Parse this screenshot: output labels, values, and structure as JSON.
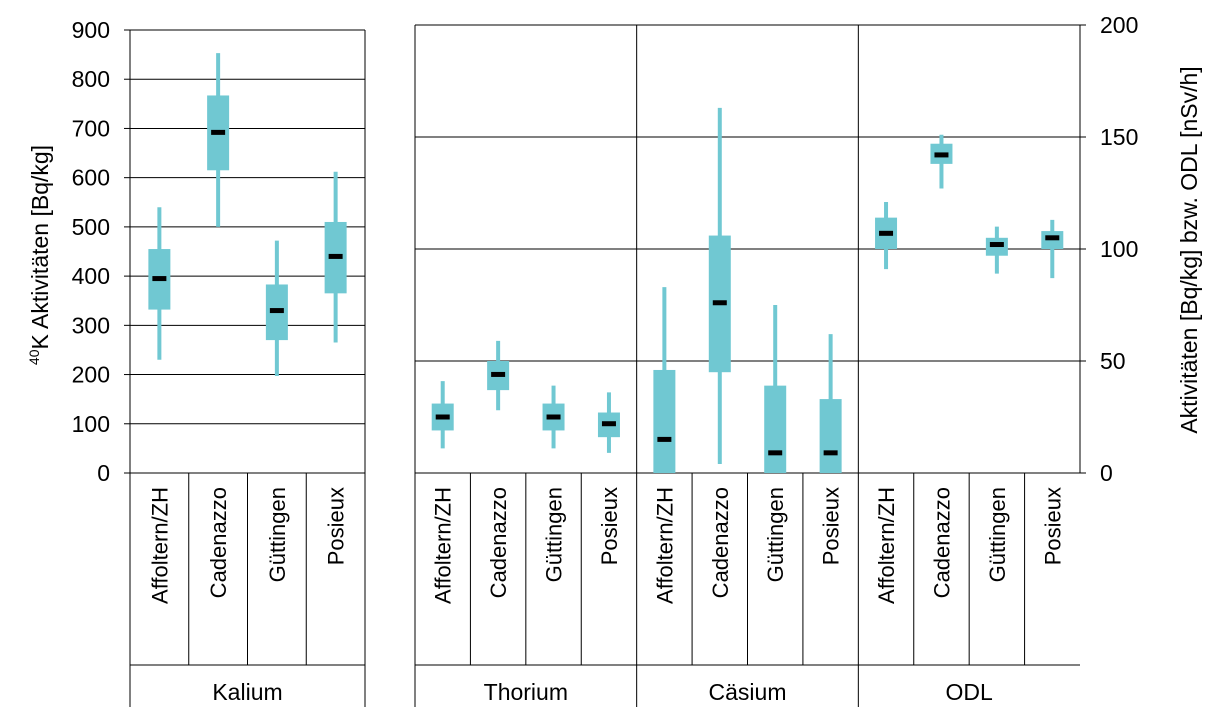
{
  "chart_data": [
    {
      "type": "box",
      "panel": "left",
      "ylabel_sup": "40",
      "ylabel": "K Aktivitäten [Bq/kg]",
      "ylim": [
        0,
        900
      ],
      "yticks": [
        0,
        100,
        200,
        300,
        400,
        500,
        600,
        700,
        800,
        900
      ],
      "group": "Kalium",
      "categories": [
        "Affoltern/ZH",
        "Cadenazzo",
        "Güttingen",
        "Posieux"
      ],
      "boxes": [
        {
          "min": 230,
          "q1": 332,
          "median": 395,
          "q3": 455,
          "max": 540
        },
        {
          "min": 500,
          "q1": 615,
          "median": 692,
          "q3": 767,
          "max": 853
        },
        {
          "min": 197,
          "q1": 270,
          "median": 330,
          "q3": 383,
          "max": 472
        },
        {
          "min": 265,
          "q1": 365,
          "median": 440,
          "q3": 510,
          "max": 612
        }
      ]
    },
    {
      "type": "box",
      "panel": "right",
      "ylabel": "Aktivitäten [Bq/kg] bzw. ODL [nSv/h]",
      "ylim": [
        0,
        200
      ],
      "yticks": [
        0,
        50,
        100,
        150,
        200
      ],
      "groups": [
        {
          "name": "Thorium",
          "categories": [
            "Affoltern/ZH",
            "Cadenazzo",
            "Güttingen",
            "Posieux"
          ],
          "boxes": [
            {
              "min": 11,
              "q1": 19,
              "median": 25,
              "q3": 31,
              "max": 41
            },
            {
              "min": 28,
              "q1": 37,
              "median": 44,
              "q3": 50,
              "max": 59
            },
            {
              "min": 11,
              "q1": 19,
              "median": 25,
              "q3": 31,
              "max": 39
            },
            {
              "min": 9,
              "q1": 16,
              "median": 22,
              "q3": 27,
              "max": 36
            }
          ]
        },
        {
          "name": "Cäsium",
          "categories": [
            "Affoltern/ZH",
            "Cadenazzo",
            "Güttingen",
            "Posieux"
          ],
          "boxes": [
            {
              "min": 0,
              "q1": 0,
              "median": 15,
              "q3": 46,
              "max": 83
            },
            {
              "min": 4,
              "q1": 45,
              "median": 76,
              "q3": 106,
              "max": 163
            },
            {
              "min": 0,
              "q1": 0,
              "median": 9,
              "q3": 39,
              "max": 75
            },
            {
              "min": 0,
              "q1": 0,
              "median": 9,
              "q3": 33,
              "max": 62
            }
          ]
        },
        {
          "name": "ODL",
          "categories": [
            "Affoltern/ZH",
            "Cadenazzo",
            "Güttingen",
            "Posieux"
          ],
          "boxes": [
            {
              "min": 91,
              "q1": 100,
              "median": 107,
              "q3": 114,
              "max": 121
            },
            {
              "min": 127,
              "q1": 138,
              "median": 142,
              "q3": 147,
              "max": 151
            },
            {
              "min": 89,
              "q1": 97,
              "median": 102,
              "q3": 105,
              "max": 110
            },
            {
              "min": 87,
              "q1": 100,
              "median": 105,
              "q3": 108,
              "max": 113
            }
          ]
        }
      ]
    }
  ],
  "colors": {
    "box": "#70c8d2",
    "median": "#000000",
    "grid": "#000000"
  }
}
